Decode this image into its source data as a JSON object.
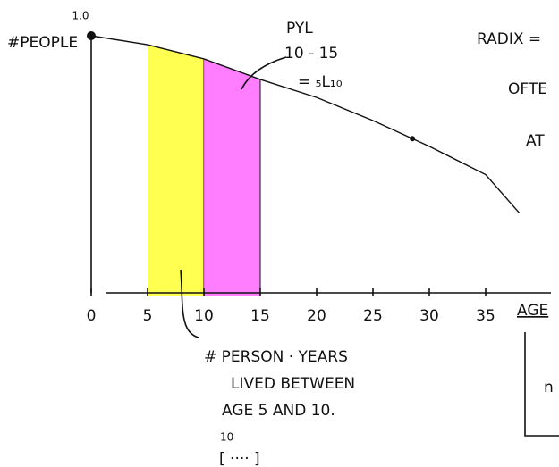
{
  "chart_data": {
    "type": "line",
    "x": [
      0,
      5,
      10,
      15,
      20,
      25,
      28.5,
      30,
      35,
      38
    ],
    "values": [
      1.0,
      0.965,
      0.91,
      0.83,
      0.76,
      0.67,
      0.6,
      0.57,
      0.46,
      0.31
    ],
    "color": "#111111",
    "xlim": [
      0,
      40
    ],
    "ylim": [
      0,
      1
    ],
    "xticks": [
      0,
      5,
      10,
      15,
      20,
      25,
      30,
      35
    ],
    "yticks": [
      {
        "value": 1,
        "label": "1.0"
      }
    ],
    "ylabel": "#PEOPLE",
    "xlabel": "AGE",
    "bands": [
      {
        "from": 5,
        "to": 10,
        "color": "#ffff33"
      },
      {
        "from": 10,
        "to": 15,
        "color": "#ff66ff"
      }
    ],
    "marked_point": 6,
    "annotations": [
      "PYL",
      "10 - 15",
      "= ₅L₁₀",
      "RADIX =",
      "OFTE",
      "AT",
      "# PERSON · YEARS",
      "LIVED BETWEEN",
      "AGE 5 AND 10.",
      "10",
      "n"
    ]
  }
}
